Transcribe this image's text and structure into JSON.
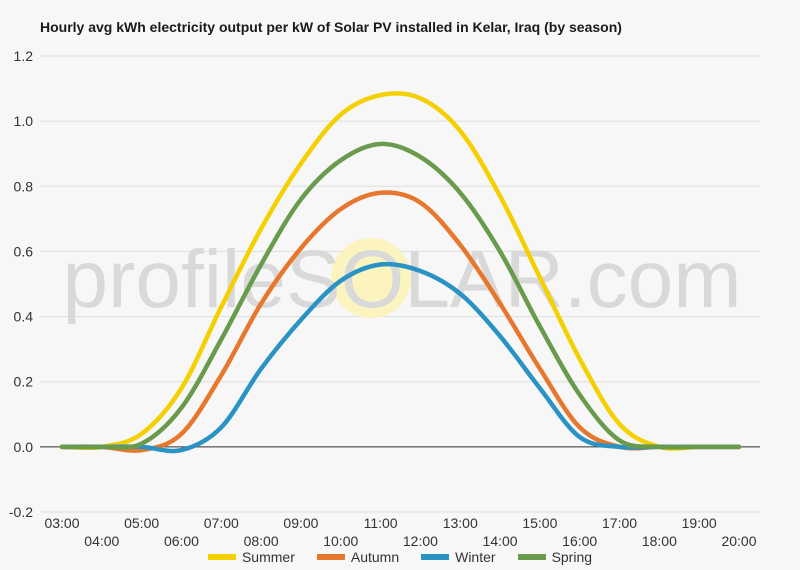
{
  "chart_data": {
    "type": "line",
    "title": "Hourly avg kWh electricity output per kW of Solar PV installed in Kelar, Iraq (by season)",
    "watermark": "profileSOLAR.com",
    "ylim": [
      -0.2,
      1.2
    ],
    "yticks": [
      "-0.2",
      "0.0",
      "0.2",
      "0.4",
      "0.6",
      "0.8",
      "1.0",
      "1.2"
    ],
    "xlim": [
      3,
      20
    ],
    "xticks": [
      "03:00",
      "04:00",
      "05:00",
      "06:00",
      "07:00",
      "08:00",
      "09:00",
      "10:00",
      "11:00",
      "12:00",
      "13:00",
      "14:00",
      "15:00",
      "16:00",
      "17:00",
      "18:00",
      "19:00",
      "20:00"
    ],
    "grid": true,
    "legend_position": "bottom",
    "x": [
      3,
      4,
      5,
      6,
      7,
      8,
      9,
      10,
      11,
      12,
      13,
      14,
      15,
      16,
      17,
      18,
      19,
      20
    ],
    "series": [
      {
        "name": "Summer",
        "color": "#f5d000",
        "values": [
          0.0,
          0.0,
          0.04,
          0.18,
          0.43,
          0.67,
          0.87,
          1.02,
          1.08,
          1.07,
          0.97,
          0.77,
          0.52,
          0.27,
          0.07,
          0.0,
          0.0,
          0.0
        ]
      },
      {
        "name": "Autumn",
        "color": "#e8772e",
        "values": [
          0.0,
          0.0,
          -0.01,
          0.04,
          0.22,
          0.44,
          0.61,
          0.73,
          0.78,
          0.75,
          0.62,
          0.44,
          0.24,
          0.06,
          0.0,
          0.0,
          0.0,
          0.0
        ]
      },
      {
        "name": "Winter",
        "color": "#2a93c4",
        "values": [
          0.0,
          0.0,
          0.0,
          -0.01,
          0.06,
          0.24,
          0.39,
          0.51,
          0.56,
          0.54,
          0.47,
          0.34,
          0.18,
          0.03,
          0.0,
          0.0,
          0.0,
          0.0
        ]
      },
      {
        "name": "Spring",
        "color": "#6a9a4c",
        "values": [
          0.0,
          0.0,
          0.01,
          0.12,
          0.33,
          0.56,
          0.76,
          0.88,
          0.93,
          0.89,
          0.78,
          0.6,
          0.37,
          0.16,
          0.02,
          0.0,
          0.0,
          0.0
        ]
      }
    ]
  }
}
